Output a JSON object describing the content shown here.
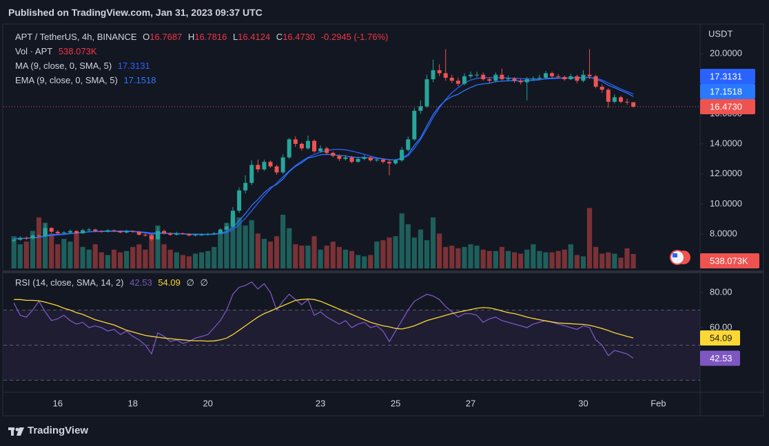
{
  "chart_data": {
    "type": "candlestick",
    "published": "Published on TradingView.com, Jan 31, 2023 09:37 UTC",
    "symbol": "APT / TetherUS, 4h, BINANCE",
    "ohlc_prefixes": [
      "O",
      "H",
      "L",
      "C"
    ],
    "change": "-0.2945 (-1.76%)",
    "last_close_label": "16.4730",
    "volume_title": "Vol · APT",
    "last_volume_label": "538.073K",
    "ma_title": "MA (9, close, 0, SMA, 5)",
    "ema_title": "EMA (9, close, 0, SMA, 5)",
    "rsi_title": "RSI (14, close, SMA, 14, 2)",
    "rsi_extra": [
      "∅",
      "∅"
    ],
    "currency": "USDT",
    "brand": "TradingView",
    "up_color": "#26a69a",
    "down_color": "#ef5350",
    "volume_up_color": "#1f5f5b",
    "volume_down_color": "#7a3236",
    "ma_color": "#2962ff",
    "ema_color": "#2979ff",
    "rsi_color": "#7e57c2",
    "rsi_ma_color": "#fdd835",
    "grid": false,
    "ylim": [
      5.71,
      21.97
    ],
    "yticks": [
      {
        "value": 8,
        "label": "8.0000"
      },
      {
        "value": 10,
        "label": "10.0000"
      },
      {
        "value": 12,
        "label": "12.0000"
      },
      {
        "value": 14,
        "label": "14.0000"
      },
      {
        "value": 16,
        "label": "16.0000"
      },
      {
        "value": 20,
        "label": "20.0000"
      }
    ],
    "volume_lim": [
      0,
      9100000
    ],
    "rsi_ylim": [
      23.1,
      89.8
    ],
    "rsi_yticks": [
      {
        "value": 80,
        "label": "80.00"
      },
      {
        "value": 60,
        "label": "60.00"
      },
      {
        "value": 40,
        "label": "40.00"
      }
    ],
    "rsi_levels": [
      70,
      50,
      30
    ],
    "categories": [
      null,
      null,
      null,
      null,
      null,
      null,
      null,
      "16",
      null,
      null,
      null,
      null,
      null,
      null,
      null,
      null,
      null,
      null,
      null,
      "18",
      null,
      null,
      null,
      null,
      null,
      null,
      null,
      null,
      null,
      null,
      null,
      "20",
      null,
      null,
      null,
      null,
      null,
      null,
      null,
      null,
      null,
      null,
      null,
      null,
      null,
      null,
      null,
      null,
      null,
      "23",
      null,
      null,
      null,
      null,
      null,
      null,
      null,
      null,
      null,
      null,
      null,
      "25",
      null,
      null,
      null,
      null,
      null,
      null,
      null,
      null,
      null,
      null,
      null,
      "27",
      null,
      null,
      null,
      null,
      null,
      null,
      null,
      null,
      null,
      null,
      null,
      null,
      null,
      null,
      null,
      null,
      null,
      "30",
      null,
      null,
      null,
      null,
      null,
      null,
      null,
      null,
      null,
      null,
      null,
      "Feb"
    ],
    "open": [
      7.55,
      7.62,
      7.75,
      7.7,
      7.9,
      7.85,
      8.4,
      8.15,
      8.05,
      8.1,
      8.2,
      8.05,
      8.25,
      8.3,
      8.2,
      8.15,
      8.25,
      8.2,
      8.1,
      8.2,
      8.15,
      7.95,
      7.9,
      7.65,
      8.2,
      8.05,
      7.95,
      8.05,
      8.0,
      7.9,
      7.95,
      7.95,
      8.0,
      8.05,
      8.3,
      8.5,
      9.55,
      10.9,
      11.4,
      12.6,
      12.3,
      12.8,
      12.5,
      12.1,
      13.1,
      14.3,
      14.0,
      13.7,
      14.2,
      13.5,
      13.7,
      13.4,
      13.2,
      13.0,
      13.1,
      12.8,
      13.0,
      13.1,
      12.9,
      12.95,
      12.8,
      12.7,
      12.9,
      13.6,
      14.3,
      16.2,
      16.5,
      18.3,
      18.9,
      18.7,
      18.4,
      18.2,
      18.0,
      18.5,
      18.6,
      18.6,
      18.3,
      18.2,
      18.6,
      18.3,
      18.35,
      18.2,
      18.1,
      18.3,
      18.35,
      18.4,
      18.7,
      18.5,
      18.45,
      18.3,
      18.5,
      18.2,
      18.6,
      18.5,
      17.8,
      17.6,
      16.8,
      17.1,
      16.8,
      16.7687,
      null,
      null,
      null,
      null
    ],
    "high": [
      7.7,
      7.85,
      7.85,
      8.0,
      7.98,
      8.7,
      8.45,
      8.25,
      8.2,
      8.3,
      8.25,
      8.35,
      8.4,
      8.35,
      8.25,
      8.32,
      8.3,
      8.25,
      8.28,
      8.25,
      8.2,
      8.05,
      7.98,
      8.5,
      8.3,
      8.12,
      8.15,
      8.1,
      8.05,
      8.02,
      8.05,
      8.08,
      8.12,
      8.4,
      8.7,
      9.8,
      11.1,
      11.9,
      12.9,
      12.95,
      12.95,
      12.9,
      12.6,
      13.3,
      14.4,
      14.5,
      14.1,
      14.55,
      14.3,
      13.9,
      13.8,
      13.5,
      13.3,
      13.25,
      13.2,
      13.1,
      13.25,
      13.2,
      13.05,
      13.05,
      12.95,
      13.0,
      13.8,
      14.5,
      16.4,
      16.9,
      18.6,
      19.6,
      19.3,
      20.3,
      18.6,
      18.4,
      18.7,
      18.8,
      18.8,
      18.75,
      18.45,
      18.75,
      19.0,
      18.55,
      18.45,
      18.35,
      18.45,
      18.5,
      18.6,
      18.85,
      18.8,
      18.65,
      18.55,
      18.65,
      18.6,
      18.9,
      20.3,
      18.6,
      17.95,
      17.7,
      17.3,
      17.2,
      17.0,
      16.7816,
      null,
      null,
      null,
      null
    ],
    "low": [
      7.45,
      7.55,
      7.6,
      7.65,
      7.78,
      7.8,
      8.05,
      7.95,
      8.0,
      8.02,
      8.0,
      8.0,
      8.15,
      8.12,
      8.08,
      8.1,
      8.12,
      8.05,
      8.05,
      8.08,
      7.9,
      7.82,
      7.55,
      7.6,
      7.98,
      7.88,
      7.9,
      7.95,
      7.85,
      7.85,
      7.88,
      7.9,
      7.95,
      8.0,
      8.22,
      8.4,
      9.4,
      10.7,
      11.25,
      12.1,
      12.2,
      12.4,
      11.95,
      12.0,
      13.0,
      13.8,
      13.55,
      13.6,
      13.4,
      13.4,
      13.3,
      13.1,
      12.85,
      12.9,
      12.7,
      12.75,
      12.9,
      12.8,
      12.8,
      12.7,
      11.9,
      12.6,
      12.8,
      13.5,
      14.2,
      16.0,
      16.4,
      18.1,
      18.5,
      18.2,
      18.05,
      17.85,
      17.9,
      18.35,
      18.4,
      18.2,
      18.05,
      18.1,
      18.2,
      18.15,
      18.05,
      17.95,
      16.9,
      18.2,
      18.25,
      18.3,
      18.4,
      18.35,
      18.2,
      18.25,
      18.05,
      18.1,
      18.3,
      17.7,
      17.4,
      16.4,
      16.7,
      16.7,
      16.6,
      16.4124,
      null,
      null,
      null,
      null
    ],
    "close": [
      7.62,
      7.75,
      7.7,
      7.9,
      7.85,
      8.4,
      8.15,
      8.05,
      8.1,
      8.2,
      8.05,
      8.25,
      8.3,
      8.2,
      8.15,
      8.25,
      8.2,
      8.1,
      8.2,
      8.15,
      7.95,
      7.9,
      7.65,
      8.2,
      8.05,
      7.95,
      8.05,
      8.0,
      7.9,
      7.95,
      7.95,
      8.0,
      8.05,
      8.3,
      8.5,
      9.55,
      10.9,
      11.4,
      12.6,
      12.3,
      12.8,
      12.5,
      12.1,
      13.1,
      14.3,
      14.0,
      13.7,
      14.2,
      13.5,
      13.7,
      13.4,
      13.2,
      13.0,
      13.1,
      12.8,
      13.0,
      13.1,
      12.9,
      12.95,
      12.8,
      12.7,
      12.9,
      13.6,
      14.3,
      16.2,
      16.5,
      18.3,
      18.9,
      18.7,
      18.4,
      18.2,
      18.0,
      18.5,
      18.6,
      18.6,
      18.3,
      18.2,
      18.6,
      18.3,
      18.35,
      18.2,
      18.1,
      18.3,
      18.35,
      18.4,
      18.7,
      18.5,
      18.45,
      18.3,
      18.5,
      18.2,
      18.6,
      18.5,
      17.8,
      17.6,
      16.8,
      17.1,
      16.8,
      16.7687,
      16.473,
      null,
      null,
      null,
      null
    ],
    "volume": [
      1200000,
      900000,
      1000000,
      1400000,
      1900000,
      1700000,
      1300000,
      900000,
      1100000,
      1000000,
      1300000,
      800000,
      700000,
      900000,
      600000,
      500000,
      700000,
      600000,
      650000,
      800000,
      900000,
      700000,
      1300000,
      1600000,
      900000,
      700000,
      600000,
      500000,
      450000,
      550000,
      600000,
      650000,
      800000,
      1300000,
      1700000,
      2000000,
      1900000,
      1600000,
      1800000,
      1300000,
      1100000,
      1000000,
      1200000,
      2000000,
      1500000,
      900000,
      850000,
      850000,
      1200000,
      700000,
      850000,
      1000000,
      800000,
      700000,
      650000,
      500000,
      450000,
      500000,
      1000000,
      1050000,
      1150000,
      1200000,
      2050000,
      1650000,
      1150000,
      1450000,
      1050000,
      1900000,
      1300000,
      800000,
      850000,
      750000,
      800000,
      900000,
      850000,
      700000,
      650000,
      650000,
      800000,
      650000,
      600000,
      550000,
      700000,
      900000,
      650000,
      600000,
      600000,
      650000,
      700000,
      900000,
      500000,
      450000,
      2250000,
      800000,
      550000,
      600000,
      550000,
      400000,
      750000,
      538073,
      null,
      null,
      null,
      null
    ],
    "ma": [
      7.7,
      7.71,
      7.72,
      7.75,
      7.78,
      7.85,
      7.9,
      7.94,
      7.97,
      8.02,
      8.06,
      8.1,
      8.15,
      8.18,
      8.19,
      8.2,
      8.2,
      8.2,
      8.2,
      8.19,
      8.15,
      8.12,
      8.07,
      8.08,
      8.06,
      8.04,
      8.02,
      8.0,
      7.98,
      7.97,
      7.97,
      7.96,
      7.98,
      8.02,
      8.08,
      8.3,
      8.65,
      9.05,
      9.55,
      10.05,
      10.55,
      11.0,
      11.4,
      11.8,
      12.2,
      12.55,
      12.85,
      13.1,
      13.3,
      13.45,
      13.55,
      13.62,
      13.63,
      13.6,
      13.52,
      13.42,
      13.3,
      13.18,
      13.08,
      13.0,
      12.95,
      12.92,
      13.0,
      13.2,
      13.7,
      14.3,
      15.0,
      15.75,
      16.4,
      16.95,
      17.4,
      17.75,
      18.05,
      18.25,
      18.35,
      18.4,
      18.4,
      18.4,
      18.4,
      18.38,
      18.36,
      18.34,
      18.33,
      18.32,
      18.3,
      18.32,
      18.34,
      18.36,
      18.38,
      18.4,
      18.4,
      18.41,
      18.42,
      18.36,
      18.25,
      18.05,
      17.85,
      17.65,
      17.48,
      17.3131,
      null,
      null,
      null,
      null
    ],
    "ema": [
      7.68,
      7.7,
      7.71,
      7.75,
      7.77,
      7.9,
      7.95,
      7.98,
      8.0,
      8.04,
      8.06,
      8.1,
      8.14,
      8.16,
      8.16,
      8.18,
      8.18,
      8.17,
      8.17,
      8.17,
      8.12,
      8.08,
      8.0,
      8.04,
      8.04,
      8.03,
      8.03,
      8.02,
      8.0,
      7.99,
      7.98,
      7.98,
      7.99,
      8.06,
      8.15,
      8.45,
      8.9,
      9.35,
      9.9,
      10.3,
      10.75,
      11.1,
      11.3,
      11.65,
      12.15,
      12.5,
      12.75,
      13.05,
      13.15,
      13.27,
      13.3,
      13.28,
      13.22,
      13.2,
      13.12,
      13.1,
      13.1,
      13.06,
      13.04,
      13.0,
      12.94,
      12.93,
      13.06,
      13.3,
      13.9,
      14.4,
      15.2,
      15.95,
      16.5,
      16.9,
      17.15,
      17.3,
      17.55,
      17.75,
      17.92,
      17.99,
      18.03,
      18.14,
      18.17,
      18.2,
      18.2,
      18.18,
      18.2,
      18.23,
      18.26,
      18.35,
      18.38,
      18.39,
      18.37,
      18.4,
      18.36,
      18.41,
      18.43,
      18.3,
      18.16,
      17.9,
      17.74,
      17.55,
      17.38,
      17.1518,
      null,
      null,
      null,
      null
    ],
    "rsi": [
      74,
      67,
      66,
      70,
      75,
      69,
      64,
      65,
      67,
      64,
      62,
      63,
      60,
      61,
      60,
      58,
      59,
      56,
      58,
      55,
      53,
      50,
      45,
      57,
      55,
      52,
      53,
      51,
      52,
      54,
      55,
      56,
      60,
      64,
      70,
      79,
      83,
      84,
      86,
      82,
      85,
      80,
      70,
      75,
      79,
      76,
      73,
      76,
      67,
      69,
      66,
      64,
      62,
      64,
      60,
      62,
      63,
      60,
      61,
      58,
      52,
      58,
      64,
      70,
      75,
      77,
      79,
      78,
      76,
      72,
      69,
      66,
      68,
      68,
      67,
      63,
      65,
      66,
      64,
      63,
      62,
      61,
      60,
      62,
      63,
      64,
      63,
      62,
      61,
      60,
      59,
      61,
      60,
      53,
      50,
      44,
      47,
      46,
      45,
      42.53,
      null,
      null,
      null,
      null
    ],
    "rsi_ma": [
      76,
      76,
      75.5,
      75.5,
      75.3,
      74.5,
      73.5,
      72.5,
      71,
      70,
      68.5,
      67.5,
      66,
      64.5,
      63.5,
      62.5,
      61.5,
      60,
      58.5,
      57.5,
      56.5,
      55.5,
      55,
      54.5,
      54,
      53.7,
      53.3,
      53,
      52.7,
      52.5,
      52.5,
      52.3,
      52.4,
      53,
      54,
      56,
      58.5,
      61,
      63.5,
      66,
      68,
      69.4,
      71,
      72.5,
      74,
      75.5,
      76,
      76.3,
      76,
      75,
      73.5,
      72,
      70.5,
      69,
      67.5,
      66,
      64.5,
      63,
      62,
      61,
      60.4,
      59.5,
      59.2,
      60,
      61,
      62.5,
      64,
      65,
      66,
      67,
      68,
      68.8,
      69.5,
      70.3,
      71,
      71.4,
      71.2,
      70.5,
      69.5,
      68.5,
      68,
      67,
      66,
      65.2,
      64.5,
      63.8,
      63.2,
      62.7,
      62.4,
      62.2,
      62,
      61.8,
      61.3,
      60.5,
      59.5,
      58.3,
      57,
      56,
      55,
      54.09,
      null,
      null,
      null,
      null
    ]
  }
}
